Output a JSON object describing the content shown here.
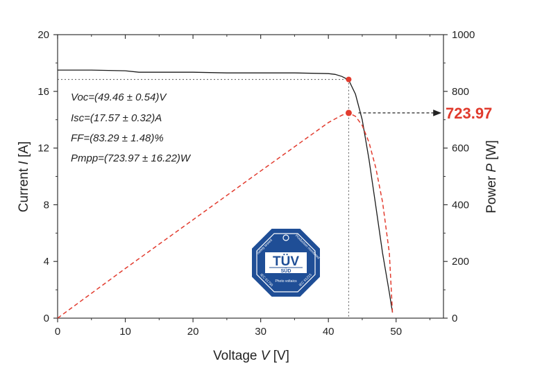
{
  "chart_data": {
    "type": "line",
    "x_axis": {
      "label_text": "Voltage ",
      "label_var": "V",
      "label_unit": " [V]",
      "range": [
        0,
        57
      ],
      "ticks": [
        0,
        10,
        20,
        30,
        40,
        50
      ]
    },
    "y_axis_left": {
      "label_text": "Current ",
      "label_var": "I",
      "label_unit": " [A]",
      "range": [
        0,
        20
      ],
      "ticks": [
        0,
        4,
        8,
        12,
        16,
        20
      ]
    },
    "y_axis_right": {
      "label_text": "Power ",
      "label_var": "P",
      "label_unit": " [W]",
      "range": [
        0,
        1000
      ],
      "ticks": [
        0,
        200,
        400,
        600,
        800,
        1000
      ]
    },
    "grid": false,
    "series": [
      {
        "axis": "left",
        "style": "solid",
        "color": "#1a1a1a",
        "x": [
          0,
          5,
          10,
          12,
          15,
          20,
          25,
          30,
          35,
          40,
          41,
          42,
          43,
          44,
          45,
          46,
          47,
          48,
          49,
          49.46
        ],
        "y": [
          17.5,
          17.5,
          17.45,
          17.35,
          17.35,
          17.35,
          17.3,
          17.3,
          17.3,
          17.25,
          17.2,
          17.05,
          16.8,
          15.8,
          14.0,
          11.2,
          7.9,
          4.6,
          1.8,
          0.4
        ]
      },
      {
        "axis": "right",
        "style": "dashed",
        "color": "#e23b2e",
        "x": [
          0,
          10,
          20,
          30,
          40,
          42,
          43,
          44,
          45,
          46,
          47,
          48,
          49,
          49.46
        ],
        "y": [
          0,
          175,
          347,
          519,
          690,
          716,
          723.97,
          712,
          680,
          620,
          530,
          410,
          230,
          20
        ]
      }
    ],
    "mpp_point": {
      "voltage": 43,
      "current": 16.84,
      "power": 723.97,
      "color": "#e23b2e"
    },
    "annotations": [
      "Voc=(49.46 ± 0.54)V",
      "Isc=(17.57 ± 0.32)A",
      "FF=(83.29 ± 1.48)%",
      "Pmpp=(723.97 ± 16.22)W"
    ],
    "callout_value": "723.97",
    "callout_color": "#e03a2c"
  },
  "logo": {
    "main": "TÜV",
    "sub": "SÜD",
    "top_left": "Safety tested",
    "top_right": "Production monitored",
    "bottom_center": "Photo voltaics",
    "bottom_left": "IEC 61730",
    "bottom_right": "IEC 61215",
    "color": "#1f4e96"
  }
}
